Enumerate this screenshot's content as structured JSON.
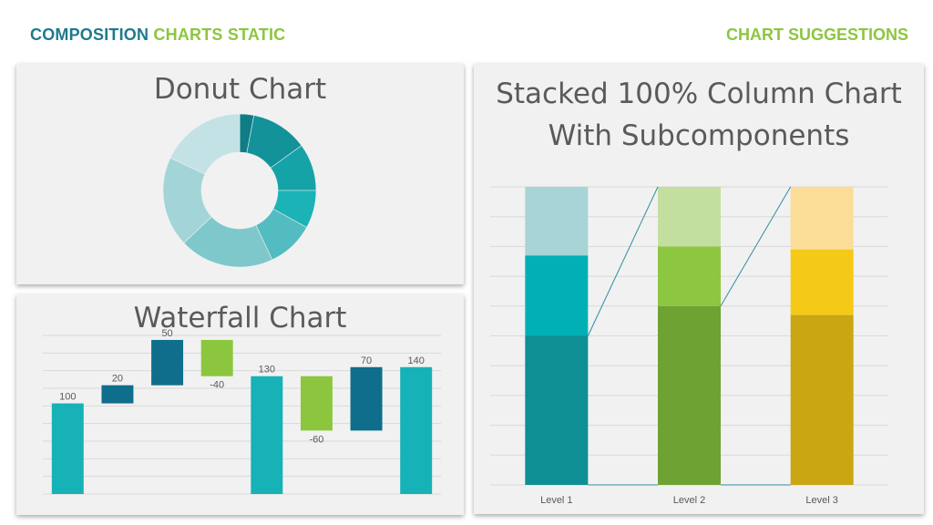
{
  "header": {
    "left_part1": "COMPOSITION",
    "left_part2": "CHARTS STATIC",
    "right": "CHART SUGGESTIONS"
  },
  "colors": {
    "accent_blue": "#1f7a8c",
    "accent_green": "#8cc63f",
    "panel_bg": "#f1f1f1"
  },
  "chart_data": [
    {
      "id": "donut",
      "type": "pie",
      "title": "Donut Chart",
      "donut": true,
      "values": [
        3,
        12,
        10,
        8,
        10,
        20,
        19,
        18
      ],
      "colors": [
        "#0e7d86",
        "#13929a",
        "#16a3a8",
        "#1bb3b5",
        "#52bcc0",
        "#7ec8cb",
        "#a3d5d8",
        "#c2e2e5"
      ]
    },
    {
      "id": "waterfall",
      "type": "bar",
      "subtype": "waterfall",
      "title": "Waterfall Chart",
      "labels": [
        "100",
        "20",
        "50",
        "-40",
        "130",
        "-60",
        "70",
        "140"
      ],
      "bars": [
        {
          "start": 0,
          "end": 100,
          "color": "#16b2b8"
        },
        {
          "start": 100,
          "end": 120,
          "color": "#0f6e8c"
        },
        {
          "start": 120,
          "end": 170,
          "color": "#0f6e8c"
        },
        {
          "start": 170,
          "end": 130,
          "color": "#8cc63f"
        },
        {
          "start": 0,
          "end": 130,
          "color": "#16b2b8"
        },
        {
          "start": 130,
          "end": 70,
          "color": "#8cc63f"
        },
        {
          "start": 70,
          "end": 140,
          "color": "#0f6e8c"
        },
        {
          "start": 0,
          "end": 140,
          "color": "#16b2b8"
        }
      ],
      "ylim": [
        0,
        175
      ],
      "grid": true
    },
    {
      "id": "stacked",
      "type": "bar",
      "subtype": "stacked-100",
      "title_line1": "Stacked 100% Column Chart",
      "title_line2": "With Subcomponents",
      "categories": [
        "Level 1",
        "Level 2",
        "Level 3"
      ],
      "segments": [
        {
          "values": [
            50,
            60,
            57
          ],
          "colors": [
            "#0e8f94",
            "#6ea333",
            "#c9a612"
          ]
        },
        {
          "values": [
            27,
            20,
            22
          ],
          "colors": [
            "#00b0b5",
            "#8dc641",
            "#f5c917"
          ]
        },
        {
          "values": [
            23,
            20,
            21
          ],
          "colors": [
            "#a7d4d6",
            "#c2df9f",
            "#fbdd98"
          ]
        }
      ],
      "ylim": [
        0,
        100
      ],
      "grid": true,
      "connectors": true
    }
  ]
}
